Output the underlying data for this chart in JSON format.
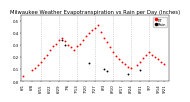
{
  "title": "Milwaukee Weather Evapotranspiration vs Rain per Day (Inches)",
  "title_fontsize": 3.8,
  "background_color": "#ffffff",
  "grid_color": "#bbbbbb",
  "et_color": "#ff0000",
  "rain_color": "#000000",
  "tick_fontsize": 2.8,
  "ylim": [
    0.0,
    0.55
  ],
  "yticks": [
    0.0,
    0.1,
    0.2,
    0.3,
    0.4,
    0.5
  ],
  "et_data": [
    [
      0,
      0.04
    ],
    [
      3,
      0.09
    ],
    [
      4,
      0.11
    ],
    [
      5,
      0.13
    ],
    [
      6,
      0.16
    ],
    [
      7,
      0.19
    ],
    [
      8,
      0.22
    ],
    [
      9,
      0.26
    ],
    [
      10,
      0.29
    ],
    [
      11,
      0.31
    ],
    [
      12,
      0.34
    ],
    [
      13,
      0.36
    ],
    [
      14,
      0.33
    ],
    [
      15,
      0.3
    ],
    [
      16,
      0.28
    ],
    [
      17,
      0.26
    ],
    [
      18,
      0.29
    ],
    [
      19,
      0.31
    ],
    [
      20,
      0.34
    ],
    [
      21,
      0.37
    ],
    [
      22,
      0.4
    ],
    [
      23,
      0.42
    ],
    [
      24,
      0.44
    ],
    [
      25,
      0.46
    ],
    [
      26,
      0.41
    ],
    [
      27,
      0.36
    ],
    [
      28,
      0.32
    ],
    [
      29,
      0.28
    ],
    [
      30,
      0.24
    ],
    [
      31,
      0.21
    ],
    [
      32,
      0.18
    ],
    [
      33,
      0.16
    ],
    [
      34,
      0.14
    ],
    [
      35,
      0.12
    ],
    [
      36,
      0.11
    ],
    [
      38,
      0.13
    ],
    [
      39,
      0.16
    ],
    [
      40,
      0.19
    ],
    [
      41,
      0.22
    ],
    [
      42,
      0.24
    ],
    [
      43,
      0.22
    ],
    [
      44,
      0.2
    ],
    [
      45,
      0.18
    ],
    [
      46,
      0.16
    ],
    [
      47,
      0.14
    ]
  ],
  "rain_data": [
    [
      13,
      0.34
    ],
    [
      14,
      0.3
    ],
    [
      22,
      0.15
    ],
    [
      27,
      0.1
    ],
    [
      28,
      0.08
    ],
    [
      35,
      0.06
    ],
    [
      39,
      0.09
    ]
  ],
  "vgrid_positions": [
    6,
    12,
    18,
    24,
    30,
    36,
    42
  ],
  "xtick_positions": [
    0,
    3,
    6,
    9,
    12,
    15,
    18,
    21,
    24,
    27,
    30,
    33,
    36,
    39,
    42,
    45,
    47
  ],
  "xtick_labels": [
    "6/1",
    "6/8",
    "6/15",
    "6/22",
    "6/29",
    "7/6",
    "7/13",
    "7/20",
    "7/27",
    "8/3",
    "8/10",
    "8/17",
    "8/24",
    "8/31",
    "9/7",
    "9/14",
    "9/21"
  ],
  "legend_et": "ET",
  "legend_rain": "Rain",
  "marker_size": 1.8,
  "xlim": [
    -0.5,
    48.5
  ]
}
